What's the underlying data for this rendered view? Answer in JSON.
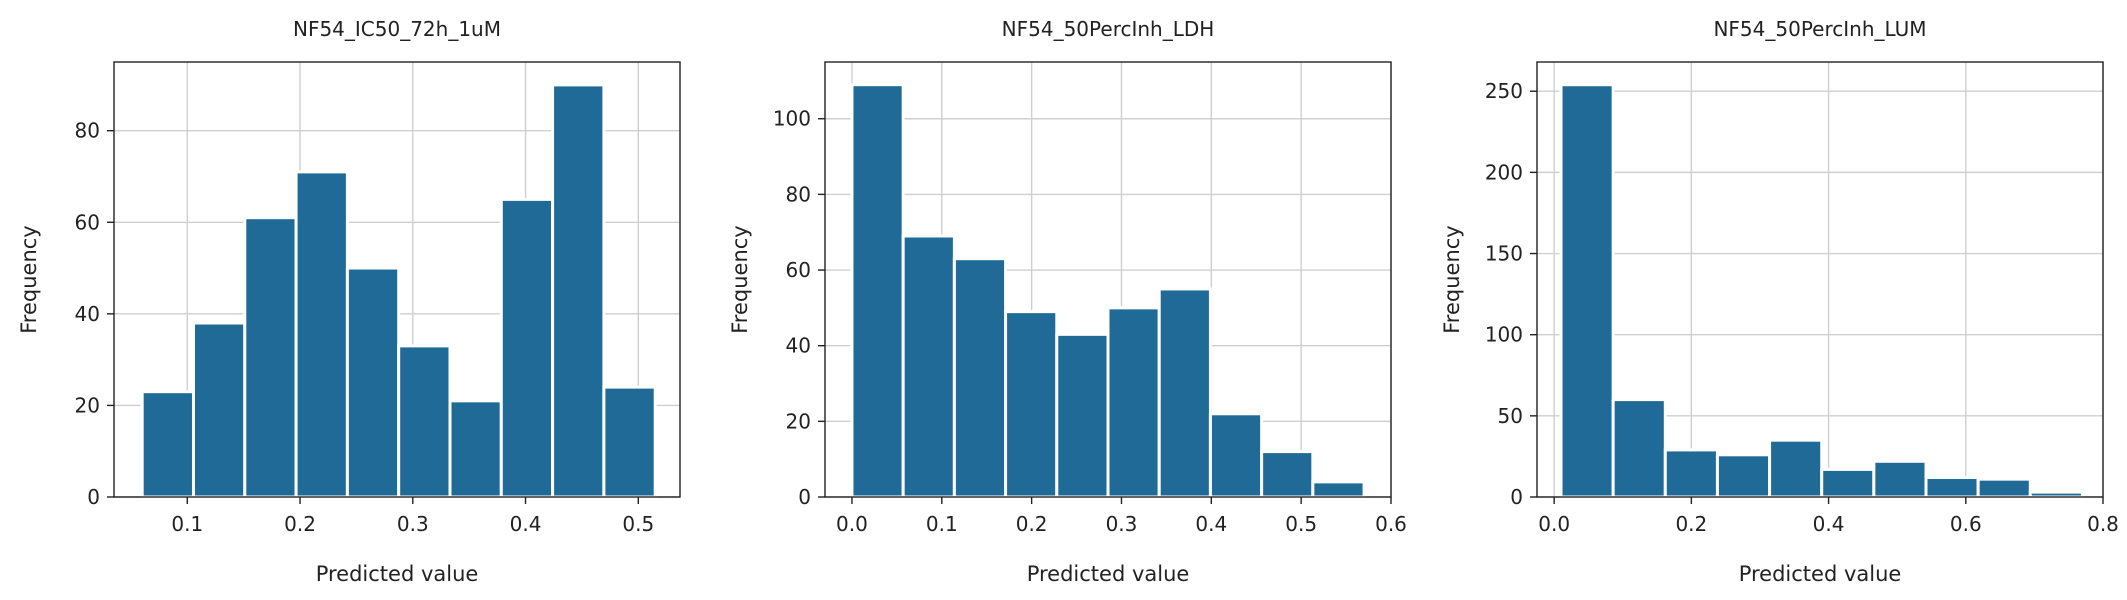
{
  "figure": {
    "bar_color": "#1f6a97"
  },
  "chart_data": [
    {
      "type": "bar",
      "title": "NF54_IC50_72h_1uM",
      "xlabel": "Predicted value",
      "ylabel": "Frequency",
      "xlim": [
        0.035,
        0.537
      ],
      "ylim": [
        0,
        95
      ],
      "xticks": [
        0.1,
        0.2,
        0.3,
        0.4,
        0.5
      ],
      "xtick_labels": [
        "0.1",
        "0.2",
        "0.3",
        "0.4",
        "0.5"
      ],
      "yticks": [
        0,
        20,
        40,
        60,
        80
      ],
      "ytick_labels": [
        "0",
        "20",
        "40",
        "60",
        "80"
      ],
      "bin_edges": [
        0.06,
        0.1055,
        0.151,
        0.1965,
        0.242,
        0.2875,
        0.333,
        0.3785,
        0.424,
        0.4695,
        0.515
      ],
      "values": [
        23,
        38,
        61,
        71,
        50,
        33,
        21,
        65,
        90,
        24
      ],
      "grid": true
    },
    {
      "type": "bar",
      "title": "NF54_50PercInh_LDH",
      "xlabel": "Predicted value",
      "ylabel": "Frequency",
      "xlim": [
        -0.03,
        0.6
      ],
      "ylim": [
        0,
        115
      ],
      "xticks": [
        0.0,
        0.1,
        0.2,
        0.3,
        0.4,
        0.5,
        0.6
      ],
      "xtick_labels": [
        "0.0",
        "0.1",
        "0.2",
        "0.3",
        "0.4",
        "0.5",
        "0.6"
      ],
      "yticks": [
        0,
        20,
        40,
        60,
        80,
        100
      ],
      "ytick_labels": [
        "0",
        "20",
        "40",
        "60",
        "80",
        "100"
      ],
      "bin_edges": [
        0.0,
        0.057,
        0.114,
        0.171,
        0.228,
        0.285,
        0.342,
        0.399,
        0.456,
        0.513,
        0.57
      ],
      "values": [
        109,
        69,
        63,
        49,
        43,
        50,
        55,
        22,
        12,
        4
      ],
      "grid": true
    },
    {
      "type": "bar",
      "title": "NF54_50PercInh_LUM",
      "xlabel": "Predicted value",
      "ylabel": "Frequency",
      "xlim": [
        -0.025,
        0.8
      ],
      "ylim": [
        0,
        268
      ],
      "xticks": [
        0.0,
        0.2,
        0.4,
        0.6,
        0.8
      ],
      "xtick_labels": [
        "0.0",
        "0.2",
        "0.4",
        "0.6",
        "0.8"
      ],
      "yticks": [
        0,
        50,
        100,
        150,
        200,
        250
      ],
      "ytick_labels": [
        "0",
        "50",
        "100",
        "150",
        "200",
        "250"
      ],
      "bin_edges": [
        0.01,
        0.086,
        0.162,
        0.238,
        0.314,
        0.39,
        0.466,
        0.542,
        0.618,
        0.694,
        0.77
      ],
      "values": [
        254,
        60,
        29,
        26,
        35,
        17,
        22,
        12,
        11,
        3
      ],
      "grid": true
    }
  ]
}
